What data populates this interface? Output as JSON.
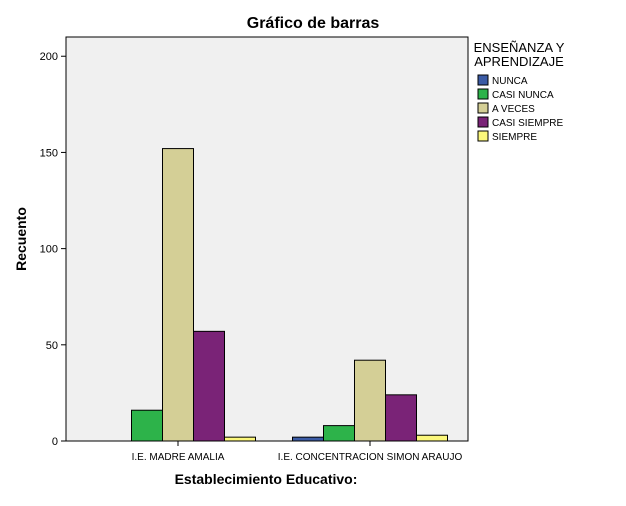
{
  "chart_data": {
    "type": "bar",
    "title": "Gráfico de barras",
    "xlabel": "Establecimiento Educativo:",
    "ylabel": "Recuento",
    "ylim": [
      0,
      210
    ],
    "yticks": [
      0,
      50,
      100,
      150,
      200
    ],
    "categories": [
      "I.E. MADRE AMALIA",
      "I.E. CONCENTRACION SIMON ARAUJO"
    ],
    "legend_title": [
      "ENSEÑANZA Y",
      "APRENDIZAJE"
    ],
    "legend_position": "right",
    "grid": false,
    "plot_background": "#f0f0f0",
    "series": [
      {
        "name": "NUNCA",
        "color": "#3b5ba5",
        "values": [
          0,
          2
        ]
      },
      {
        "name": "CASI NUNCA",
        "color": "#2db34a",
        "values": [
          16,
          8
        ]
      },
      {
        "name": "A VECES",
        "color": "#d4cf96",
        "values": [
          152,
          42
        ]
      },
      {
        "name": "CASI SIEMPRE",
        "color": "#7a2377",
        "values": [
          57,
          24
        ]
      },
      {
        "name": "SIEMPRE",
        "color": "#fbf77b",
        "values": [
          2,
          3
        ]
      }
    ]
  }
}
